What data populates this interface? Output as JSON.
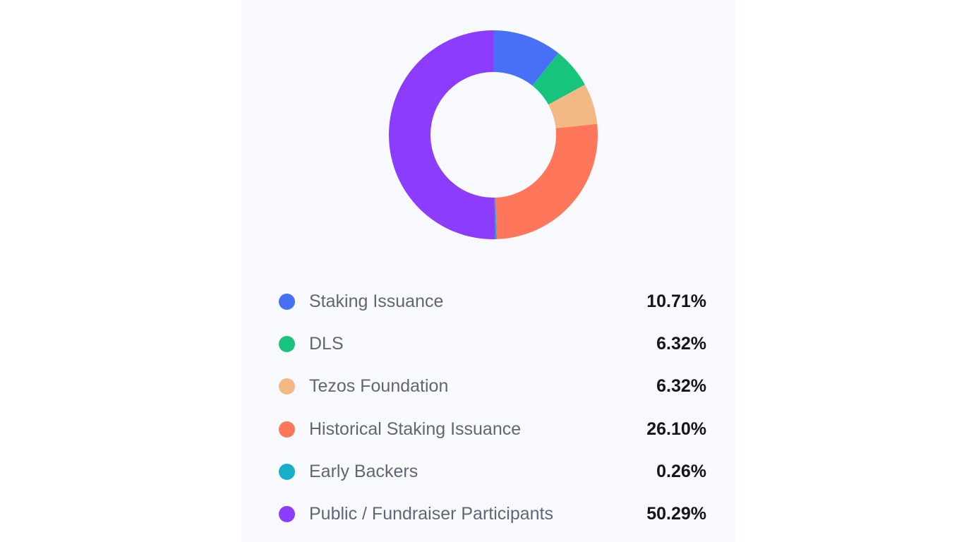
{
  "chart_data": {
    "type": "pie",
    "donut": true,
    "legend_placement": "bottom",
    "start_angle_deg": 0,
    "direction": "clockwise",
    "slices": [
      {
        "label": "Staking Issuance",
        "value": 10.71,
        "display": "10.71%",
        "color": "#4870f6"
      },
      {
        "label": "DLS",
        "value": 6.32,
        "display": "6.32%",
        "color": "#17c47d"
      },
      {
        "label": "Tezos Foundation",
        "value": 6.32,
        "display": "6.32%",
        "color": "#f3b985"
      },
      {
        "label": "Historical Staking Issuance",
        "value": 26.1,
        "display": "26.10%",
        "color": "#ff765a"
      },
      {
        "label": "Early Backers",
        "value": 0.26,
        "display": "0.26%",
        "color": "#16aec9"
      },
      {
        "label": "Public / Fundraiser Participants",
        "value": 50.29,
        "display": "50.29%",
        "color": "#8b3cfc"
      }
    ]
  }
}
